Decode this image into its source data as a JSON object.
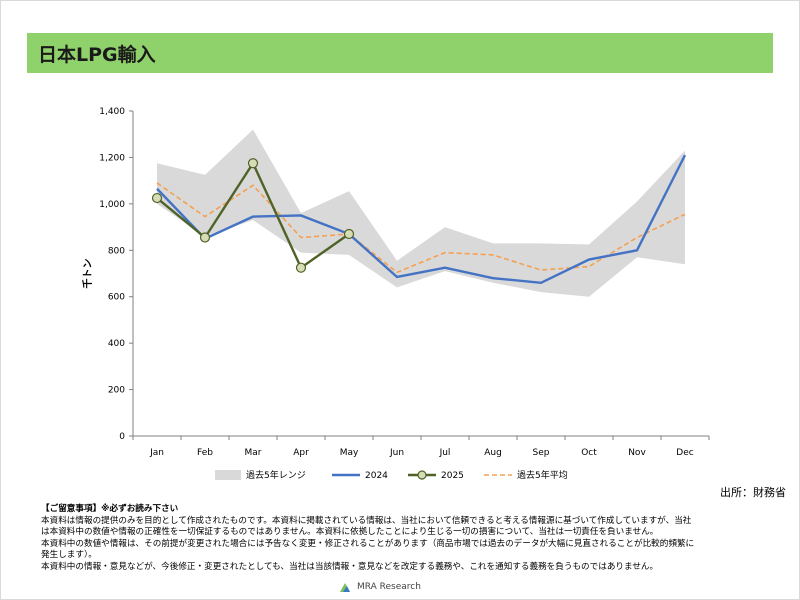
{
  "header": {
    "title": "日本LPG輸入"
  },
  "colors": {
    "range_fill": "#d9d9d9",
    "s2024": "#4472c4",
    "s2025": "#4f6228",
    "s2025_marker": "#d6dcb4",
    "avg": "#f4a050",
    "title_bar": "#8fd16a"
  },
  "chart_data": {
    "type": "line",
    "ylabel": "千トン",
    "ylim": [
      0,
      1400
    ],
    "yticks": [
      0,
      200,
      400,
      600,
      800,
      1000,
      1200,
      1400
    ],
    "ytick_labels": [
      "0",
      "200",
      "400",
      "600",
      "800",
      "1,000",
      "1,200",
      "1,400"
    ],
    "categories": [
      "Jan",
      "Feb",
      "Mar",
      "Apr",
      "May",
      "Jun",
      "Jul",
      "Aug",
      "Sep",
      "Oct",
      "Nov",
      "Dec"
    ],
    "range_band": {
      "name": "過去5年レンジ",
      "min": [
        1000,
        860,
        930,
        790,
        780,
        640,
        710,
        660,
        620,
        600,
        770,
        740
      ],
      "max": [
        1175,
        1125,
        1320,
        960,
        1055,
        755,
        900,
        830,
        830,
        825,
        1010,
        1230
      ]
    },
    "series": [
      {
        "name": "2024",
        "values": [
          1065,
          850,
          945,
          950,
          870,
          685,
          725,
          680,
          660,
          760,
          800,
          1210
        ]
      },
      {
        "name": "2025",
        "values": [
          1025,
          855,
          1175,
          725,
          870,
          null,
          null,
          null,
          null,
          null,
          null,
          null
        ]
      },
      {
        "name": "過去5年平均",
        "values": [
          1090,
          945,
          1080,
          855,
          870,
          705,
          790,
          780,
          715,
          730,
          855,
          955
        ]
      }
    ],
    "legend_position": "bottom"
  },
  "source": "出所：財務省",
  "notes": {
    "heading": "【ご留意事項】※必ずお読み下さい",
    "lines": [
      "本資料は情報の提供のみを目的として作成されたものです。本資料に掲載されている情報は、当社において信頼できると考える情報源に基づいて作成していますが、当社",
      "は本資料中の数値や情報の正確性を一切保証するものではありません。本資料に依拠したことにより生じる一切の損害について、当社は一切責任を負いません。",
      "本資料中の数値や情報は、その前提が変更された場合には予告なく変更・修正されることがあります（商品市場では過去のデータが大幅に見直されることが比較的頻繁に",
      "発生します）。",
      "本資料中の情報・意見などが、今後修正・変更されたとしても、当社は当該情報・意見などを改定する義務や、これを通知する義務を負うものではありません。"
    ]
  },
  "footer": {
    "brand": "MRA Research"
  }
}
